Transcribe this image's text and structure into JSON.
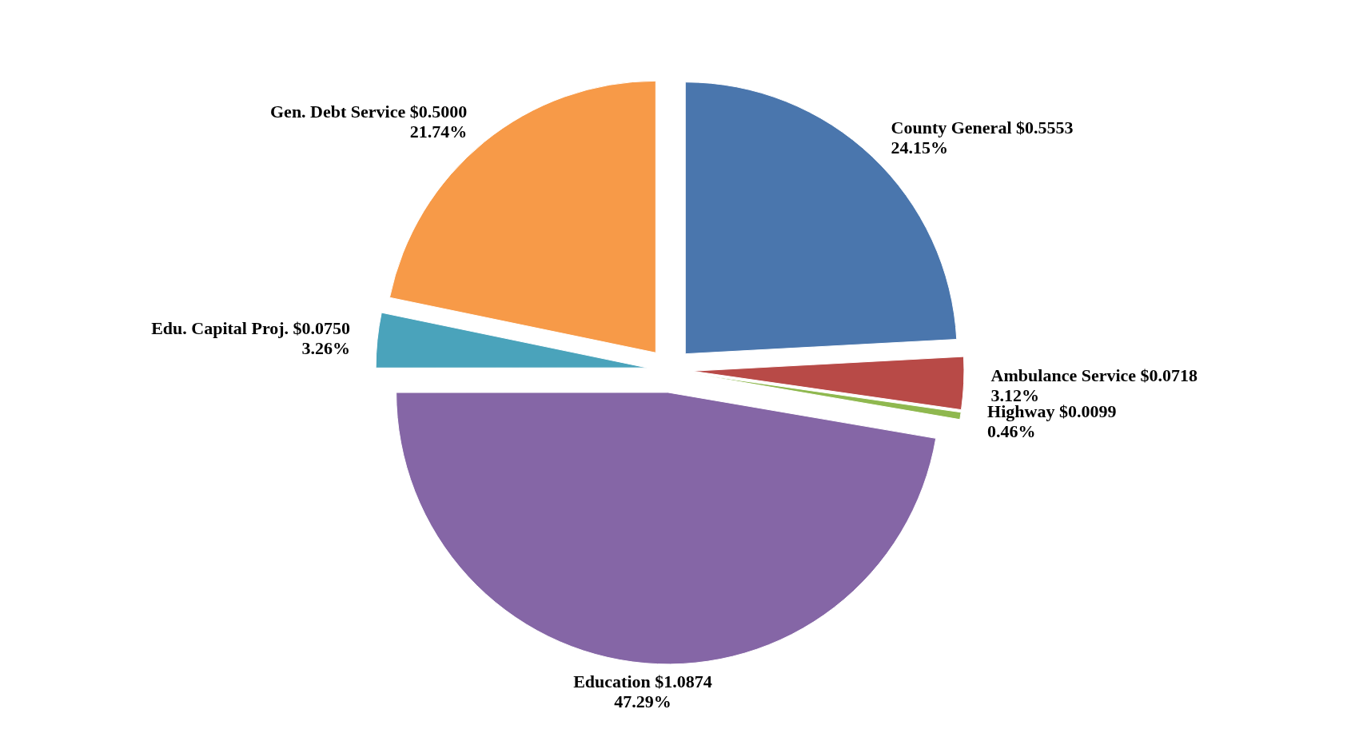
{
  "chart_data": {
    "type": "pie",
    "categories": [
      "County General",
      "Ambulance Service",
      "Highway",
      "Education",
      "Edu. Capital Proj.",
      "Gen. Debt Service"
    ],
    "values": [
      0.5553,
      0.0718,
      0.0099,
      1.0874,
      0.075,
      0.5
    ],
    "value_labels": [
      "$0.5553 24.15%",
      "$0.0718 3.12%",
      "$0.0099 0.46%",
      "$1.0874 47.29%",
      "$0.0750 3.26%",
      "$0.5000 21.74%"
    ],
    "colors": [
      "#4a76ad",
      "#b84a47",
      "#8fb84f",
      "#8566a6",
      "#4aa3bb",
      "#f79a48"
    ]
  }
}
